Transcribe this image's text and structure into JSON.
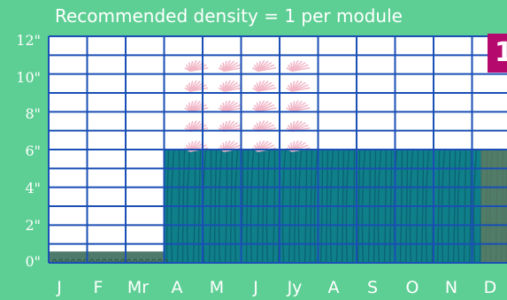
{
  "title": "Recommended density = 1 per module",
  "badge": "1",
  "y_axis": {
    "labels": [
      "12\"",
      "10\"",
      "8\"",
      "6\"",
      "4\"",
      "2\"",
      "0\""
    ]
  },
  "x_axis": {
    "labels": [
      "J",
      "F",
      "Mr",
      "A",
      "M",
      "J",
      "Jy",
      "A",
      "S",
      "O",
      "N",
      "D"
    ]
  },
  "colors": {
    "background": "#5ecf94",
    "grid": "#1a4fb5",
    "plant_fill": "#0f7f8a",
    "low_ground": "#4d7a6a",
    "flower": "#f2b8c8",
    "badge": "#b5096e"
  },
  "plant_height": {
    "unit": "inches",
    "by_month": [
      0.6,
      0.6,
      0.6,
      6,
      6,
      6,
      6,
      6,
      6,
      6,
      6,
      6
    ]
  },
  "flowering": {
    "months": [
      "Jy",
      "A"
    ],
    "top": 11,
    "bottom": 6
  }
}
